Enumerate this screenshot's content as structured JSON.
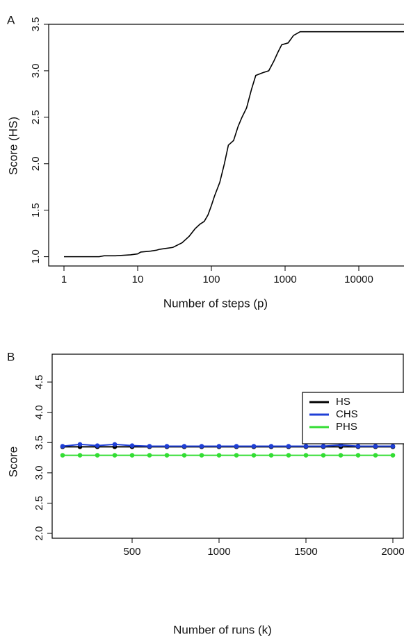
{
  "chart_data": [
    {
      "type": "line",
      "panel_label": "A",
      "xlabel": "Number of steps (p)",
      "ylabel": "Score (HS)",
      "xscale": "log",
      "xlim": [
        0.62,
        100000
      ],
      "ylim": [
        0.9,
        3.5
      ],
      "xticks": [
        1,
        10,
        100,
        1000,
        10000
      ],
      "yticks": [
        {
          "value": 1,
          "label": "1.0"
        },
        {
          "value": 1.5,
          "label": "1.5"
        },
        {
          "value": 2,
          "label": "2.0"
        },
        {
          "value": 2.5,
          "label": "2.5"
        },
        {
          "value": 3,
          "label": "3.0"
        },
        {
          "value": 3.5,
          "label": "3.5"
        }
      ],
      "x": [
        1,
        3,
        3.5,
        5,
        8,
        10,
        11,
        15,
        18,
        20,
        30,
        40,
        50,
        60,
        70,
        80,
        90,
        100,
        110,
        130,
        150,
        170,
        200,
        230,
        260,
        300,
        350,
        400,
        500,
        600,
        700,
        800,
        900,
        1100,
        1300,
        1600,
        60000
      ],
      "series": [
        {
          "color": "#000000",
          "values": [
            1.0,
            1.0,
            1.01,
            1.01,
            1.02,
            1.03,
            1.05,
            1.06,
            1.07,
            1.08,
            1.1,
            1.15,
            1.22,
            1.3,
            1.35,
            1.38,
            1.45,
            1.55,
            1.65,
            1.8,
            2.0,
            2.2,
            2.25,
            2.4,
            2.5,
            2.6,
            2.8,
            2.95,
            2.98,
            3.0,
            3.1,
            3.2,
            3.28,
            3.3,
            3.38,
            3.42,
            3.42
          ]
        }
      ]
    },
    {
      "type": "line",
      "panel_label": "B",
      "xlabel": "Number of runs (k)",
      "ylabel": "Score",
      "markers": true,
      "legend": "upper right",
      "xlim": [
        40,
        2060
      ],
      "ylim": [
        1.92,
        4.96
      ],
      "xticks": [
        500,
        1000,
        1500,
        2000
      ],
      "yticks": [
        {
          "value": 2,
          "label": "2.0"
        },
        {
          "value": 2.5,
          "label": "2.5"
        },
        {
          "value": 3,
          "label": "3.0"
        },
        {
          "value": 3.5,
          "label": "3.5"
        },
        {
          "value": 4,
          "label": "4.0"
        },
        {
          "value": 4.5,
          "label": "4.5"
        }
      ],
      "x": [
        100,
        200,
        300,
        400,
        500,
        600,
        700,
        800,
        900,
        1000,
        1100,
        1200,
        1300,
        1400,
        1500,
        1600,
        1700,
        1800,
        1900,
        2000
      ],
      "series": [
        {
          "name": "HS",
          "color": "#000000",
          "values": [
            3.43,
            3.43,
            3.43,
            3.43,
            3.43,
            3.43,
            3.43,
            3.43,
            3.43,
            3.43,
            3.43,
            3.43,
            3.43,
            3.43,
            3.43,
            3.43,
            3.43,
            3.43,
            3.43,
            3.43
          ]
        },
        {
          "name": "CHS",
          "color": "#1f3fd6",
          "values": [
            3.44,
            3.47,
            3.45,
            3.47,
            3.45,
            3.44,
            3.44,
            3.44,
            3.44,
            3.44,
            3.44,
            3.44,
            3.44,
            3.44,
            3.44,
            3.44,
            3.46,
            3.44,
            3.44,
            3.44
          ]
        },
        {
          "name": "PHS",
          "color": "#33dd33",
          "values": [
            3.29,
            3.29,
            3.29,
            3.29,
            3.29,
            3.29,
            3.29,
            3.29,
            3.29,
            3.29,
            3.29,
            3.29,
            3.29,
            3.29,
            3.29,
            3.29,
            3.29,
            3.29,
            3.29,
            3.29
          ]
        }
      ]
    }
  ]
}
